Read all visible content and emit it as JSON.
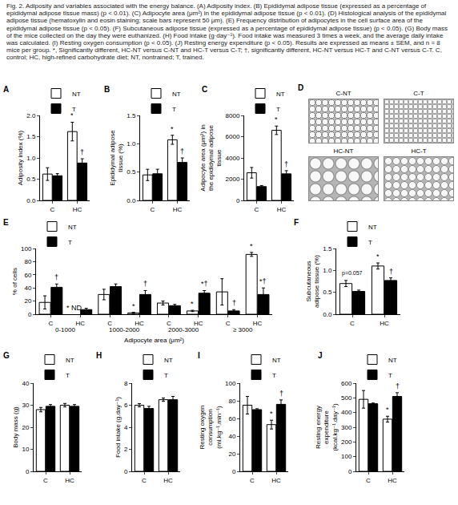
{
  "caption": "Fig. 2. Adiposity and variables associated with the energy balance. (A) Adiposity index. (B) Epididymal adipose tissue (expressed as a percentage of epididymal adipose tissue mass) (p < 0.01). (C) Adipocyte area (μm²) in the epididymal adipose tissue (p < 0.01). (D) Histological analysis of the epididymal adipose tissue (hematoxylin and eosin staining; scale bars represent 50 μm). (E) Frequency distribution of adipocytes in the cell surface area of the epididymal adipose tissue (p < 0.05). (F) Subcutaneous adipose tissue (expressed as a percentage of epididymal adipose tissue) (p < 0.05). (G) Body mass of the mice collected on the day they were euthanized. (H) Food intake (g·day⁻¹). Food intake was measured 3 times a week, and the average daily intake was calculated. (I) Resting oxygen consumption (p < 0.05). (J) Resting energy expenditure (p < 0.05). Results are expressed as means ± SEM, and n = 8 mice per group. *, Significantly different, HC-NT versus C-NT and HC-T versus C-T; †, significantly different, HC-NT versus HC-T and C-NT versus C-T. C, control; HC, high-refined carbohydrate diet; NT, nontrained; T, trained.",
  "histology": {
    "title": "D",
    "labels": [
      "C-NT",
      "C-T",
      "HC-NT",
      "HC-T"
    ]
  },
  "chart_data": [
    {
      "type": "bar",
      "title": "A",
      "ylabel": "Adiposity index (%)",
      "categories": [
        "C",
        "HC"
      ],
      "series": [
        {
          "name": "NT",
          "color": "#ffffff",
          "values": [
            0.62,
            1.62
          ],
          "errors": [
            0.15,
            0.22
          ],
          "marks": [
            null,
            "*"
          ]
        },
        {
          "name": "T",
          "color": "#000000",
          "values": [
            0.58,
            0.88
          ],
          "errors": [
            0.05,
            0.1
          ],
          "marks": [
            null,
            "†"
          ]
        }
      ],
      "ylim": [
        0,
        2
      ],
      "yticks": [
        {
          "value": 0,
          "label": "0.0"
        },
        {
          "value": 0.5,
          "label": "0.5"
        },
        {
          "value": 1,
          "label": "1.0"
        },
        {
          "value": 1.5,
          "label": "1.5"
        },
        {
          "value": 2,
          "label": "2.0"
        }
      ],
      "grid": false,
      "legend": "upper left"
    },
    {
      "type": "bar",
      "title": "B",
      "ylabel": "Epididymal adipose tissue (%)",
      "categories": [
        "C",
        "HC"
      ],
      "series": [
        {
          "name": "NT",
          "color": "#ffffff",
          "values": [
            0.45,
            1.07
          ],
          "errors": [
            0.1,
            0.08
          ],
          "marks": [
            null,
            "*"
          ]
        },
        {
          "name": "T",
          "color": "#000000",
          "values": [
            0.47,
            0.67
          ],
          "errors": [
            0.08,
            0.08
          ],
          "marks": [
            null,
            "†"
          ]
        }
      ],
      "ylim": [
        0,
        1.5
      ],
      "yticks": [
        {
          "value": 0,
          "label": "0.0"
        },
        {
          "value": 0.5,
          "label": "0.5"
        },
        {
          "value": 1,
          "label": "1.0"
        },
        {
          "value": 1.5,
          "label": "1.5"
        }
      ],
      "grid": false,
      "legend": "upper left"
    },
    {
      "type": "bar",
      "title": "C",
      "ylabel": "Adipocyte area (μm²) in the epididymal adipose tissue",
      "categories": [
        "C",
        "HC"
      ],
      "series": [
        {
          "name": "NT",
          "color": "#ffffff",
          "values": [
            2600,
            6600
          ],
          "errors": [
            500,
            400
          ],
          "marks": [
            null,
            "*"
          ]
        },
        {
          "name": "T",
          "color": "#000000",
          "values": [
            1300,
            2500
          ],
          "errors": [
            100,
            300
          ],
          "marks": [
            null,
            "†"
          ]
        }
      ],
      "ylim": [
        0,
        8000
      ],
      "yticks": [
        0,
        2000,
        4000,
        6000,
        8000
      ],
      "grid": false,
      "legend": "upper left"
    },
    {
      "type": "bar",
      "title": "E",
      "ylabel": "% of cells",
      "xlabel": "Adipocyte area (μm²)",
      "categories": [
        "C",
        "HC",
        "C",
        "HC",
        "C",
        "HC",
        "C",
        "HC"
      ],
      "groups": [
        "0-1000",
        "0-1000",
        "1000-2000",
        "1000-2000",
        "2000-3000",
        "2000-3000",
        "≥ 3000",
        "≥ 3000"
      ],
      "series": [
        {
          "name": "NT",
          "color": "#ffffff",
          "values": [
            18,
            null,
            30,
            2,
            17,
            5,
            34,
            91
          ],
          "errors": [
            10,
            null,
            8,
            1,
            3,
            1,
            20,
            3
          ],
          "marks": [
            null,
            "* ND",
            null,
            "*",
            null,
            "*",
            null,
            "*"
          ]
        },
        {
          "name": "T",
          "color": "#000000",
          "values": [
            41,
            7,
            42,
            30,
            13,
            32,
            5,
            30
          ],
          "errors": [
            5,
            2,
            4,
            6,
            2,
            4,
            2,
            10
          ],
          "marks": [
            "†",
            null,
            null,
            "†",
            null,
            "*†",
            "†",
            "*†"
          ]
        }
      ],
      "ylim": [
        0,
        100
      ],
      "yticks": [
        0,
        20,
        40,
        60,
        80,
        100
      ],
      "grid": false,
      "legend": "upper left"
    },
    {
      "type": "bar",
      "title": "F",
      "ylabel": "Subcutaneous adipose tissue (%)",
      "categories": [
        "C",
        "HC"
      ],
      "series": [
        {
          "name": "NT",
          "color": "#ffffff",
          "values": [
            0.7,
            1.1
          ],
          "errors": [
            0.07,
            0.07
          ],
          "marks": [
            null,
            "*"
          ]
        },
        {
          "name": "T",
          "color": "#000000",
          "values": [
            0.52,
            0.77
          ],
          "errors": [
            0.03,
            0.06
          ],
          "marks": [
            null,
            "†"
          ]
        }
      ],
      "annotations": [
        {
          "text": "p=0.057",
          "category": "C"
        }
      ],
      "ylim": [
        0,
        1.5
      ],
      "yticks": [
        {
          "value": 0,
          "label": "0.0"
        },
        {
          "value": 0.5,
          "label": "0.5"
        },
        {
          "value": 1,
          "label": "1.0"
        },
        {
          "value": 1.5,
          "label": "1.5"
        }
      ],
      "grid": false,
      "legend": "upper left"
    },
    {
      "type": "bar",
      "title": "G",
      "ylabel": "Body mass (g)",
      "categories": [
        "C",
        "HC"
      ],
      "series": [
        {
          "name": "NT",
          "color": "#ffffff",
          "values": [
            28,
            30
          ],
          "errors": [
            1,
            0.8
          ]
        },
        {
          "name": "T",
          "color": "#000000",
          "values": [
            29.5,
            29.5
          ],
          "errors": [
            0.8,
            0.8
          ]
        }
      ],
      "ylim": [
        0,
        40
      ],
      "yticks": [
        0,
        10,
        20,
        30,
        40
      ],
      "grid": false,
      "legend": "upper left"
    },
    {
      "type": "bar",
      "title": "H",
      "ylabel": "Food intake (g.day⁻¹)",
      "categories": [
        "C",
        "HC"
      ],
      "series": [
        {
          "name": "NT",
          "color": "#ffffff",
          "values": [
            6.0,
            6.5
          ],
          "errors": [
            0.15,
            0.15
          ]
        },
        {
          "name": "T",
          "color": "#000000",
          "values": [
            5.7,
            6.5
          ],
          "errors": [
            0.2,
            0.3
          ]
        }
      ],
      "ylim": [
        0,
        8
      ],
      "yticks": [
        0,
        2,
        4,
        6,
        8
      ],
      "grid": false,
      "legend": "upper left"
    },
    {
      "type": "bar",
      "title": "I",
      "ylabel": "Resting oxygen consumption (ml.kg⁻¹.min⁻¹)",
      "categories": [
        "C",
        "HC"
      ],
      "series": [
        {
          "name": "NT",
          "color": "#ffffff",
          "values": [
            75,
            53
          ],
          "errors": [
            10,
            5
          ],
          "marks": [
            null,
            "*"
          ]
        },
        {
          "name": "T",
          "color": "#000000",
          "values": [
            70,
            76
          ],
          "errors": [
            1,
            5
          ],
          "marks": [
            null,
            "†"
          ]
        }
      ],
      "ylim": [
        0,
        100
      ],
      "yticks": [
        0,
        20,
        40,
        60,
        80,
        100
      ],
      "grid": false,
      "legend": "upper left"
    },
    {
      "type": "bar",
      "title": "J",
      "ylabel": "Resting energy expenditure (kcal.kg⁻¹.day⁻¹)",
      "categories": [
        "C",
        "HC"
      ],
      "series": [
        {
          "name": "NT",
          "color": "#ffffff",
          "values": [
            490,
            355
          ],
          "errors": [
            60,
            20
          ],
          "marks": [
            null,
            "*"
          ]
        },
        {
          "name": "T",
          "color": "#000000",
          "values": [
            460,
            510
          ],
          "errors": [
            5,
            25
          ],
          "marks": [
            null,
            "†"
          ]
        }
      ],
      "ylim": [
        0,
        600
      ],
      "yticks": [
        0,
        100,
        200,
        300,
        400,
        500,
        600
      ],
      "grid": false,
      "legend": "upper left"
    }
  ]
}
